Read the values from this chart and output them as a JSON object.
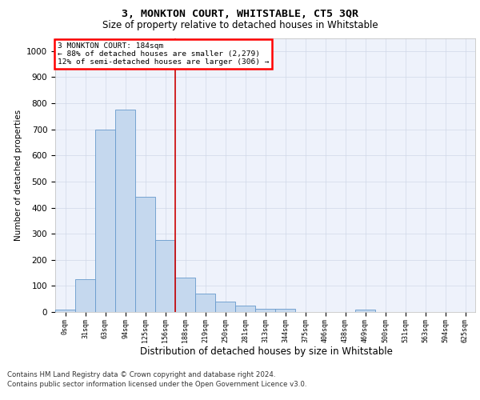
{
  "title": "3, MONKTON COURT, WHITSTABLE, CT5 3QR",
  "subtitle": "Size of property relative to detached houses in Whitstable",
  "xlabel": "Distribution of detached houses by size in Whitstable",
  "ylabel": "Number of detached properties",
  "bar_labels": [
    "0sqm",
    "31sqm",
    "63sqm",
    "94sqm",
    "125sqm",
    "156sqm",
    "188sqm",
    "219sqm",
    "250sqm",
    "281sqm",
    "313sqm",
    "344sqm",
    "375sqm",
    "406sqm",
    "438sqm",
    "469sqm",
    "500sqm",
    "531sqm",
    "563sqm",
    "594sqm",
    "625sqm"
  ],
  "bar_values": [
    8,
    127,
    700,
    775,
    440,
    275,
    133,
    70,
    40,
    25,
    13,
    12,
    0,
    0,
    0,
    10,
    0,
    0,
    0,
    0,
    0
  ],
  "bar_color": "#c5d8ee",
  "bar_edge_color": "#6699cc",
  "annotation_line1": "3 MONKTON COURT: 184sqm",
  "annotation_line2": "← 88% of detached houses are smaller (2,279)",
  "annotation_line3": "12% of semi-detached houses are larger (306) →",
  "property_line_x": 5.5,
  "property_line_color": "#cc0000",
  "ylim": [
    0,
    1050
  ],
  "yticks": [
    0,
    100,
    200,
    300,
    400,
    500,
    600,
    700,
    800,
    900,
    1000
  ],
  "footnote1": "Contains HM Land Registry data © Crown copyright and database right 2024.",
  "footnote2": "Contains public sector information licensed under the Open Government Licence v3.0.",
  "grid_color": "#d0d8e8",
  "bg_color": "#eef2fb"
}
